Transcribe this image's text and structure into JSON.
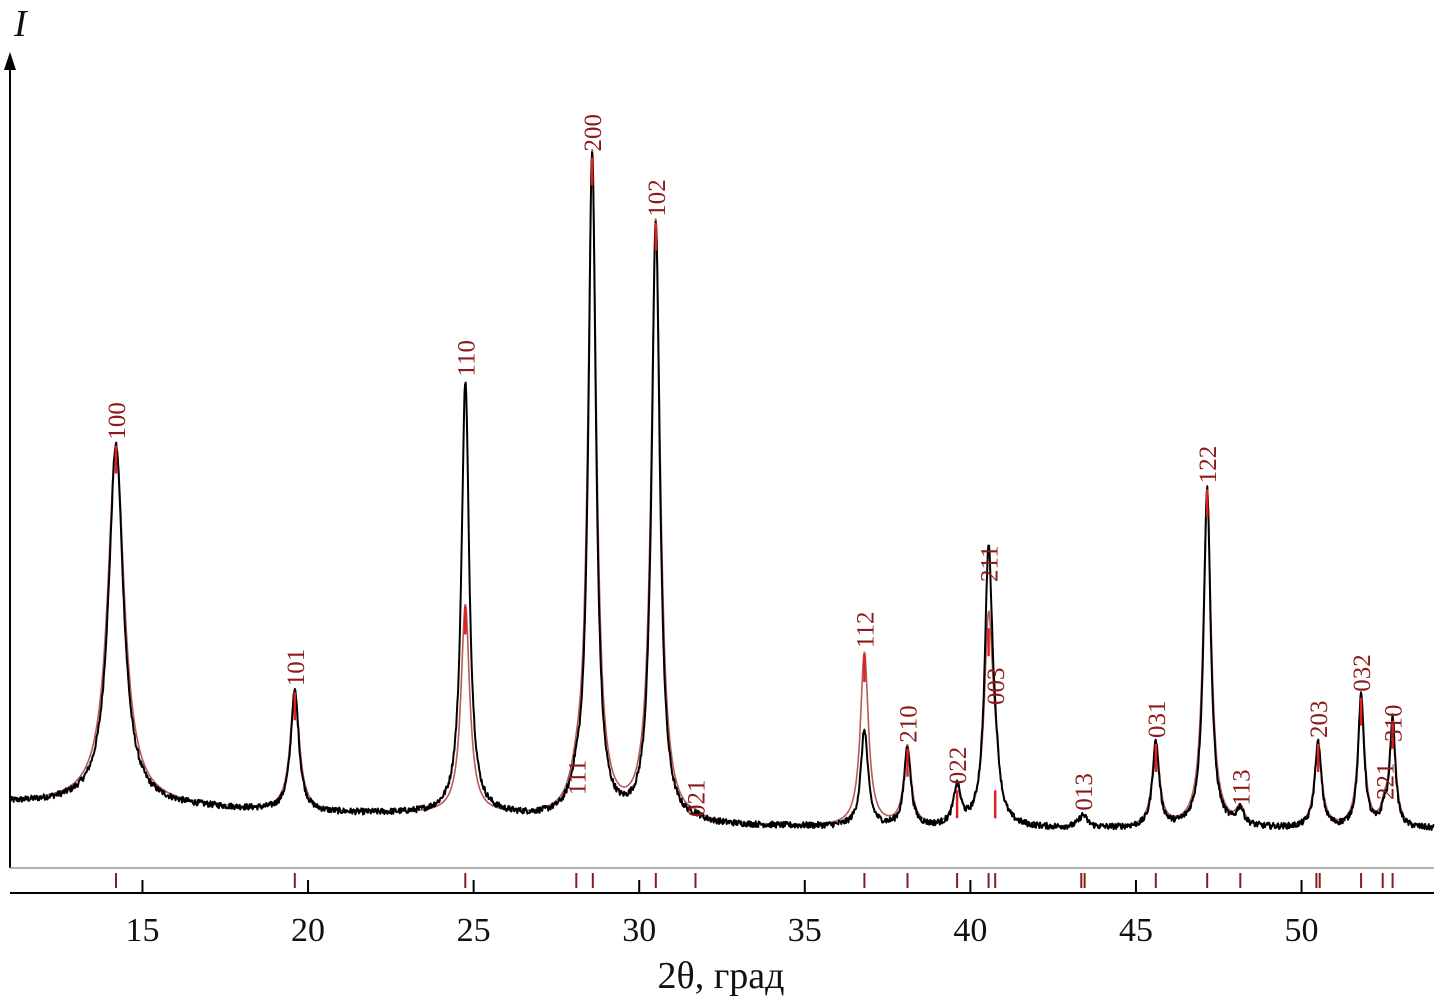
{
  "chart_data": {
    "type": "line",
    "title": "",
    "xlabel": "2θ, град",
    "ylabel": "I",
    "xlim": [
      11,
      54
    ],
    "ylim": [
      0,
      100
    ],
    "x_ticks": [
      15,
      20,
      25,
      30,
      35,
      40,
      45,
      50
    ],
    "baseline": [
      {
        "x": 11,
        "y": 3.8
      },
      {
        "x": 14,
        "y": 3.8
      },
      {
        "x": 20,
        "y": 2.4
      },
      {
        "x": 25,
        "y": 2.2
      },
      {
        "x": 31,
        "y": 0.8
      },
      {
        "x": 40,
        "y": 0.4
      },
      {
        "x": 54,
        "y": 0.4
      }
    ],
    "peaks": [
      {
        "hkl": "100",
        "x": 14.2,
        "obs": 46.3,
        "calc": 46.3,
        "w": 0.27
      },
      {
        "hkl": "101",
        "x": 19.6,
        "obs": 15.6,
        "calc": 15.6,
        "w": 0.15
      },
      {
        "hkl": "110",
        "x": 24.75,
        "obs": 56.0,
        "calc": 27.0,
        "w": 0.14
      },
      {
        "hkl": "111",
        "x": 28.1,
        "obs": 2.5,
        "calc": 2.5,
        "w": 0.2
      },
      {
        "hkl": "200",
        "x": 28.58,
        "obs": 86.0,
        "calc": 86.0,
        "w": 0.14
      },
      {
        "hkl": "102",
        "x": 30.5,
        "obs": 78.0,
        "calc": 78.0,
        "w": 0.15
      },
      {
        "hkl": "021",
        "x": 31.7,
        "obs": 0.4,
        "calc": 0.4,
        "w": 0.2
      },
      {
        "hkl": "112",
        "x": 36.8,
        "obs": 12.5,
        "calc": 22.5,
        "w": 0.13
      },
      {
        "hkl": "210",
        "x": 38.1,
        "obs": 10.3,
        "calc": 10.3,
        "w": 0.12
      },
      {
        "hkl": "022",
        "x": 39.6,
        "obs": 5.0,
        "calc": 5.0,
        "w": 0.13
      },
      {
        "hkl": "211",
        "x": 40.55,
        "obs": 35.0,
        "calc": 26.0,
        "w": 0.14
      },
      {
        "hkl": "003",
        "x": 40.75,
        "obs": 5.0,
        "calc": 5.0,
        "w": 0.14
      },
      {
        "hkl": "013",
        "x": 43.4,
        "obs": 1.6,
        "calc": 1.6,
        "w": 0.15
      },
      {
        "hkl": "031",
        "x": 45.6,
        "obs": 11.0,
        "calc": 11.0,
        "w": 0.12
      },
      {
        "hkl": "122",
        "x": 47.15,
        "obs": 44.0,
        "calc": 44.0,
        "w": 0.13
      },
      {
        "hkl": "113",
        "x": 48.15,
        "obs": 2.2,
        "calc": 2.2,
        "w": 0.13
      },
      {
        "hkl": "203",
        "x": 50.5,
        "obs": 11.0,
        "calc": 11.0,
        "w": 0.12
      },
      {
        "hkl": "032",
        "x": 51.8,
        "obs": 17.0,
        "calc": 17.0,
        "w": 0.11
      },
      {
        "hkl": "221",
        "x": 52.5,
        "obs": 2.0,
        "calc": 2.0,
        "w": 0.1
      },
      {
        "hkl": "310",
        "x": 52.75,
        "obs": 14.0,
        "calc": 14.0,
        "w": 0.1
      }
    ],
    "reflection_ticks": [
      14.2,
      19.6,
      24.75,
      28.1,
      28.6,
      30.5,
      31.7,
      36.8,
      38.1,
      39.6,
      40.55,
      40.75,
      43.35,
      43.45,
      45.6,
      47.15,
      48.15,
      50.45,
      50.55,
      51.8,
      52.45,
      52.75
    ],
    "series": [
      {
        "key": "observed",
        "color": "#000000"
      },
      {
        "key": "calculated",
        "color": "#b85a5a"
      }
    ],
    "label_color": "#8b1a1a",
    "legend": "none",
    "grid": false
  }
}
